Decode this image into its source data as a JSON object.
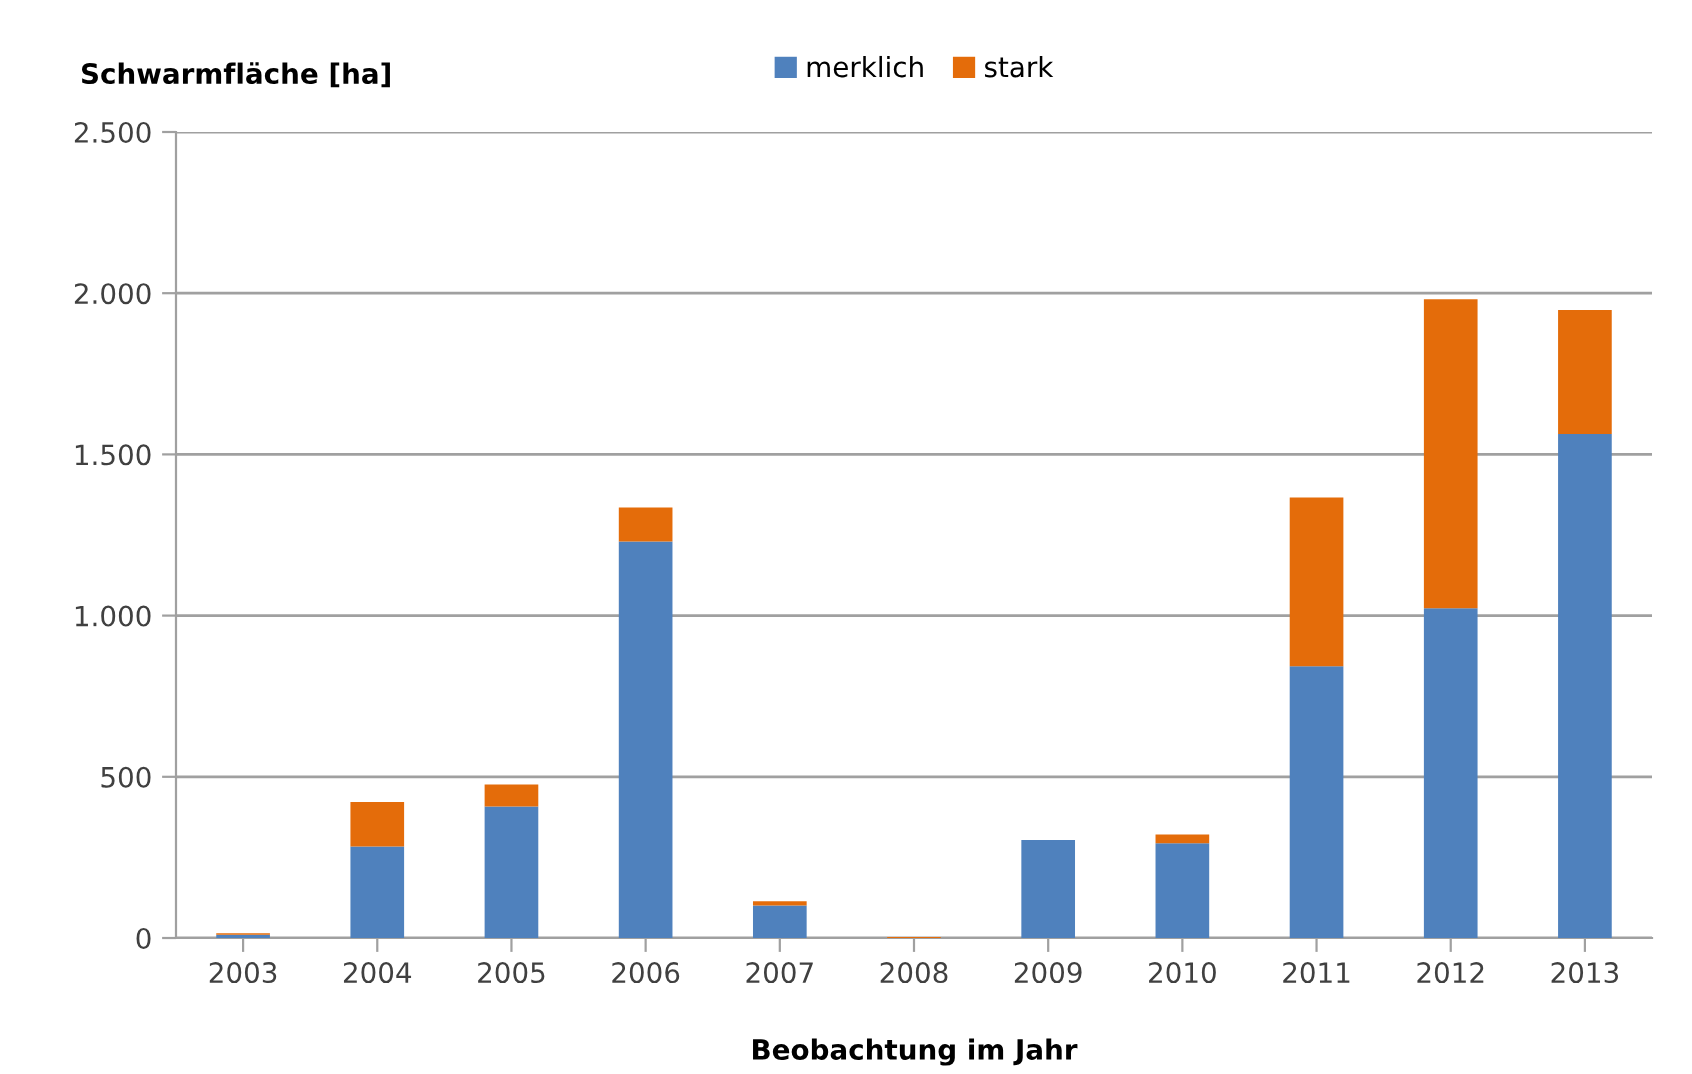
{
  "chart_data": {
    "type": "bar",
    "stacked": true,
    "ylabel": "Schwarmfläche [ha]",
    "xlabel": "Beobachtung im Jahr",
    "categories": [
      "2003",
      "2004",
      "2005",
      "2006",
      "2007",
      "2008",
      "2009",
      "2010",
      "2011",
      "2012",
      "2013"
    ],
    "series": [
      {
        "name": "merklich",
        "color": "#4f81bd",
        "values": [
          10,
          284,
          408,
          1230,
          101,
          0,
          304,
          294,
          843,
          1023,
          1563
        ]
      },
      {
        "name": "stark",
        "color": "#e46c0a",
        "values": [
          5,
          138,
          68,
          105,
          13,
          3,
          0,
          27,
          523,
          958,
          385
        ]
      }
    ],
    "ylim": [
      0,
      2500
    ],
    "yticks": [
      {
        "value": 0,
        "label": "0"
      },
      {
        "value": 500,
        "label": "500"
      },
      {
        "value": 1000,
        "label": "1.000"
      },
      {
        "value": 1500,
        "label": "1.500"
      },
      {
        "value": 2000,
        "label": "2.000"
      },
      {
        "value": 2500,
        "label": "2.500"
      }
    ],
    "grid": "y",
    "legend": "top"
  }
}
